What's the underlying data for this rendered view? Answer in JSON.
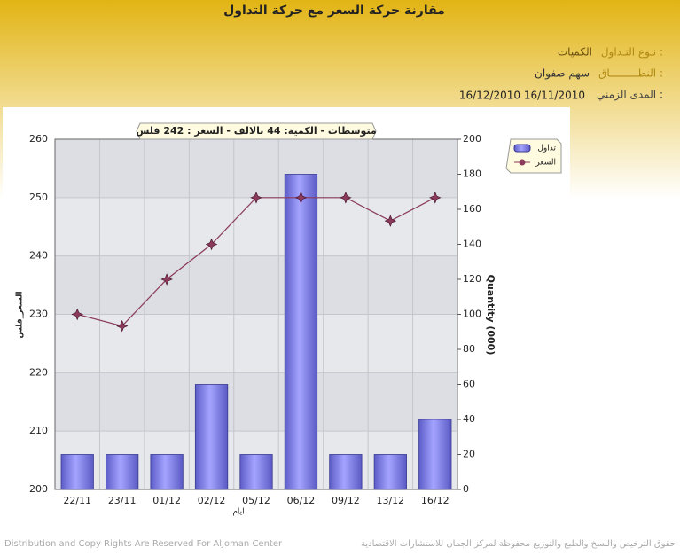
{
  "header": {
    "title": "مقارنة حركة السعر مع حركة التداول",
    "fields": [
      {
        "label": "نـوع التـداول :",
        "value": "الكميات"
      },
      {
        "label": "النطـــــــــاق :",
        "value": "سهم   صفوان"
      },
      {
        "label": "المدى الزمني :",
        "value": "16/12/2010 16/11/2010"
      }
    ]
  },
  "chart_data": {
    "type": "combo",
    "annotation": "متوسطات - الكمية: 44 بالالف  - السعر : 242 فلس",
    "x_label": "ايام",
    "y_label": "السعر_فلس",
    "y2_label": "Quantity (000)",
    "categories": [
      "22/11",
      "23/11",
      "01/12",
      "02/12",
      "05/12",
      "06/12",
      "09/12",
      "13/12",
      "16/12"
    ],
    "series": [
      {
        "name": "تداول",
        "type": "bar",
        "axis": "y2",
        "color": "#8484f0",
        "values": [
          20,
          20,
          20,
          60,
          20,
          180,
          20,
          20,
          40
        ]
      },
      {
        "name": "السعر",
        "type": "line",
        "color": "#8b3a5a",
        "values": [
          230,
          228,
          236,
          242,
          250,
          250,
          250,
          246,
          250
        ]
      }
    ],
    "ylim": [
      200,
      260
    ],
    "yticks": [
      200,
      210,
      220,
      230,
      240,
      250,
      260
    ],
    "y2lim": [
      0,
      200
    ],
    "y2ticks": [
      0,
      20,
      40,
      60,
      80,
      100,
      120,
      140,
      160,
      180,
      200
    ],
    "grid": true
  },
  "footer": {
    "left": "Distribution and Copy Rights Are Reserved For AlJoman Center",
    "right": "حقوق الترخيص والنسخ والطبع والتوزيع محفوظة لمركز الجمان للاستشارات الاقتصادية"
  }
}
